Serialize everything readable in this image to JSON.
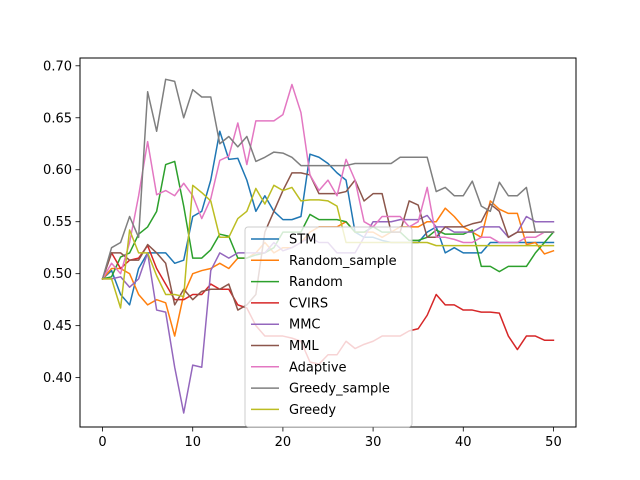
{
  "chart_data": {
    "type": "line",
    "title": "",
    "xlabel": "",
    "ylabel": "",
    "xlim": [
      -2.5,
      52.5
    ],
    "ylim": [
      0.3525,
      0.7075
    ],
    "xticks": [
      0,
      10,
      20,
      30,
      40,
      50
    ],
    "yticks": [
      0.4,
      0.45,
      0.5,
      0.55,
      0.6,
      0.65,
      0.7
    ],
    "ytick_labels": [
      "0.40",
      "0.45",
      "0.50",
      "0.55",
      "0.60",
      "0.65",
      "0.70"
    ],
    "grid": false,
    "legend_position": "lower-center",
    "x": [
      0,
      1,
      2,
      3,
      4,
      5,
      6,
      7,
      8,
      9,
      10,
      11,
      12,
      13,
      14,
      15,
      16,
      17,
      18,
      19,
      20,
      21,
      22,
      23,
      24,
      25,
      26,
      27,
      28,
      29,
      30,
      31,
      32,
      33,
      34,
      35,
      36,
      37,
      38,
      39,
      40,
      41,
      42,
      43,
      44,
      45,
      46,
      47,
      48,
      49,
      50
    ],
    "series": [
      {
        "name": "STM",
        "color": "#1f77b4",
        "values": [
          0.495,
          0.503,
          0.48,
          0.47,
          0.505,
          0.52,
          0.52,
          0.52,
          0.51,
          0.513,
          0.555,
          0.56,
          0.59,
          0.637,
          0.61,
          0.611,
          0.59,
          0.56,
          0.575,
          0.56,
          0.552,
          0.552,
          0.555,
          0.615,
          0.612,
          0.606,
          0.597,
          0.59,
          0.54,
          0.535,
          0.535,
          0.532,
          0.53,
          0.53,
          0.53,
          0.53,
          0.54,
          0.545,
          0.52,
          0.525,
          0.52,
          0.52,
          0.52,
          0.53,
          0.53,
          0.53,
          0.53,
          0.53,
          0.53,
          0.53,
          0.53
        ]
      },
      {
        "name": "Random_sample",
        "color": "#ff7f0e",
        "values": [
          0.495,
          0.505,
          0.505,
          0.5,
          0.48,
          0.47,
          0.475,
          0.472,
          0.44,
          0.48,
          0.5,
          0.503,
          0.505,
          0.51,
          0.505,
          0.515,
          0.515,
          0.52,
          0.53,
          0.52,
          0.525,
          0.525,
          0.53,
          0.54,
          0.545,
          0.545,
          0.545,
          0.55,
          0.54,
          0.54,
          0.54,
          0.535,
          0.54,
          0.545,
          0.545,
          0.545,
          0.55,
          0.55,
          0.563,
          0.555,
          0.545,
          0.54,
          0.535,
          0.57,
          0.562,
          0.558,
          0.558,
          0.528,
          0.53,
          0.519,
          0.522
        ]
      },
      {
        "name": "Random",
        "color": "#2ca02c",
        "values": [
          0.495,
          0.497,
          0.516,
          0.52,
          0.538,
          0.545,
          0.56,
          0.605,
          0.608,
          0.565,
          0.515,
          0.515,
          0.523,
          0.538,
          0.536,
          0.515,
          0.515,
          0.518,
          0.52,
          0.525,
          0.54,
          0.54,
          0.54,
          0.557,
          0.552,
          0.552,
          0.552,
          0.55,
          0.54,
          0.54,
          0.545,
          0.54,
          0.54,
          0.54,
          0.532,
          0.532,
          0.535,
          0.542,
          0.538,
          0.538,
          0.538,
          0.542,
          0.507,
          0.507,
          0.502,
          0.507,
          0.507,
          0.507,
          0.52,
          0.53,
          0.54
        ]
      },
      {
        "name": "CVIRS",
        "color": "#d62728",
        "values": [
          0.495,
          0.52,
          0.505,
          0.513,
          0.515,
          0.527,
          0.505,
          0.49,
          0.475,
          0.475,
          0.48,
          0.48,
          0.49,
          0.485,
          0.485,
          0.47,
          0.467,
          0.45,
          0.44,
          0.44,
          0.44,
          0.438,
          0.435,
          0.415,
          0.413,
          0.422,
          0.422,
          0.435,
          0.428,
          0.432,
          0.435,
          0.44,
          0.44,
          0.44,
          0.445,
          0.447,
          0.46,
          0.48,
          0.47,
          0.47,
          0.465,
          0.465,
          0.463,
          0.463,
          0.462,
          0.44,
          0.427,
          0.44,
          0.44,
          0.436,
          0.436
        ]
      },
      {
        "name": "MMC",
        "color": "#9467bd",
        "values": [
          0.495,
          0.495,
          0.497,
          0.487,
          0.495,
          0.52,
          0.465,
          0.463,
          0.41,
          0.366,
          0.412,
          0.41,
          0.503,
          0.52,
          0.515,
          0.52,
          0.52,
          0.52,
          0.52,
          0.53,
          0.522,
          0.525,
          0.53,
          0.535,
          0.53,
          0.53,
          0.52,
          0.52,
          0.52,
          0.535,
          0.55,
          0.55,
          0.55,
          0.552,
          0.552,
          0.552,
          0.556,
          0.545,
          0.545,
          0.54,
          0.54,
          0.54,
          0.545,
          0.545,
          0.545,
          0.535,
          0.54,
          0.555,
          0.55,
          0.55,
          0.55
        ]
      },
      {
        "name": "MML",
        "color": "#8c564b",
        "values": [
          0.495,
          0.52,
          0.52,
          0.513,
          0.513,
          0.528,
          0.52,
          0.51,
          0.47,
          0.485,
          0.475,
          0.483,
          0.485,
          0.485,
          0.49,
          0.465,
          0.47,
          0.48,
          0.54,
          0.56,
          0.58,
          0.597,
          0.597,
          0.595,
          0.577,
          0.577,
          0.577,
          0.579,
          0.59,
          0.57,
          0.577,
          0.577,
          0.54,
          0.54,
          0.57,
          0.566,
          0.535,
          0.535,
          0.545,
          0.545,
          0.545,
          0.548,
          0.55,
          0.567,
          0.56,
          0.535,
          0.54,
          0.54,
          0.54,
          0.54,
          0.54
        ]
      },
      {
        "name": "Adaptive",
        "color": "#e377c2",
        "values": [
          0.495,
          0.51,
          0.5,
          0.53,
          0.575,
          0.627,
          0.576,
          0.58,
          0.575,
          0.587,
          0.575,
          0.553,
          0.572,
          0.609,
          0.613,
          0.645,
          0.605,
          0.647,
          0.647,
          0.647,
          0.653,
          0.682,
          0.655,
          0.595,
          0.58,
          0.59,
          0.575,
          0.61,
          0.59,
          0.55,
          0.545,
          0.555,
          0.555,
          0.555,
          0.545,
          0.55,
          0.583,
          0.535,
          0.535,
          0.533,
          0.53,
          0.53,
          0.535,
          0.535,
          0.53,
          0.53,
          0.53,
          0.535,
          0.535,
          0.54,
          0.54
        ]
      },
      {
        "name": "Greedy_sample",
        "color": "#7f7f7f",
        "values": [
          0.495,
          0.525,
          0.53,
          0.555,
          0.535,
          0.675,
          0.637,
          0.687,
          0.685,
          0.65,
          0.677,
          0.67,
          0.67,
          0.625,
          0.632,
          0.622,
          0.632,
          0.608,
          0.612,
          0.617,
          0.616,
          0.612,
          0.604,
          0.604,
          0.604,
          0.604,
          0.604,
          0.604,
          0.606,
          0.606,
          0.606,
          0.606,
          0.606,
          0.612,
          0.612,
          0.612,
          0.612,
          0.579,
          0.583,
          0.575,
          0.575,
          0.589,
          0.565,
          0.56,
          0.588,
          0.575,
          0.575,
          0.583,
          0.54,
          0.54,
          0.54
        ]
      },
      {
        "name": "Greedy",
        "color": "#bcbd22",
        "values": [
          0.495,
          0.495,
          0.467,
          0.542,
          0.52,
          0.52,
          0.498,
          0.48,
          0.48,
          0.478,
          0.585,
          0.578,
          0.57,
          0.535,
          0.535,
          0.553,
          0.56,
          0.582,
          0.567,
          0.585,
          0.58,
          0.583,
          0.57,
          0.571,
          0.571,
          0.57,
          0.565,
          0.53,
          0.53,
          0.53,
          0.53,
          0.53,
          0.53,
          0.53,
          0.53,
          0.53,
          0.53,
          0.527,
          0.527,
          0.527,
          0.527,
          0.527,
          0.527,
          0.527,
          0.527,
          0.527,
          0.527,
          0.527,
          0.527,
          0.527,
          0.527
        ]
      }
    ]
  }
}
